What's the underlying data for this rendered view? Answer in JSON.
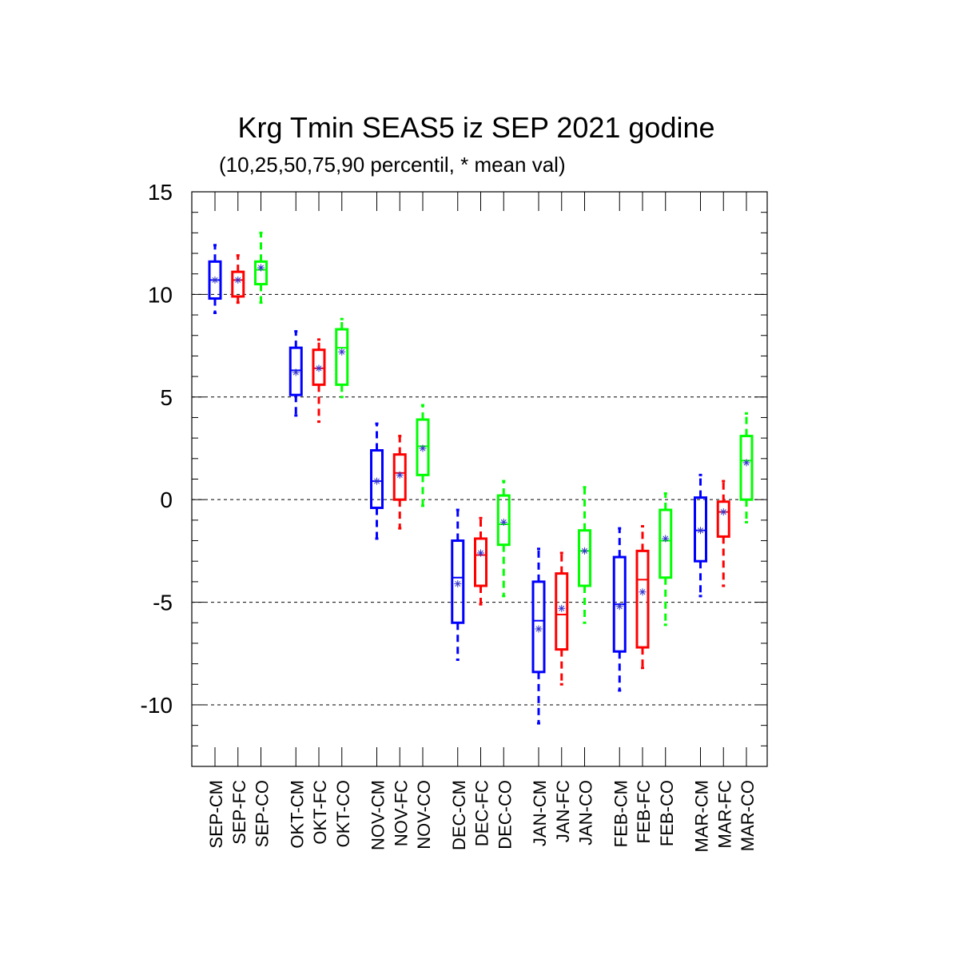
{
  "chart_data": {
    "type": "box",
    "title": "Krg Tmin SEAS5 iz SEP 2021 godine",
    "subtitle": "(10,25,50,75,90 percentil, * mean val)",
    "xlabel": "",
    "ylabel": "",
    "ylim": [
      -13,
      15
    ],
    "yticks": [
      15,
      10,
      5,
      0,
      -5,
      -10
    ],
    "ytick_labels": [
      "15",
      "10",
      "5",
      "0",
      "-5",
      "-10"
    ],
    "grid": "horizontal dashed at major ticks",
    "colors": {
      "CM": "#0000ff",
      "FC": "#ff0000",
      "CO": "#00ff00"
    },
    "categories": [
      "SEP-CM",
      "SEP-FC",
      "SEP-CO",
      "OKT-CM",
      "OKT-FC",
      "OKT-CO",
      "NOV-CM",
      "NOV-FC",
      "NOV-CO",
      "DEC-CM",
      "DEC-FC",
      "DEC-CO",
      "JAN-CM",
      "JAN-FC",
      "JAN-CO",
      "FEB-CM",
      "FEB-FC",
      "FEB-CO",
      "MAR-CM",
      "MAR-FC",
      "MAR-CO"
    ],
    "boxes": [
      {
        "p10": 9.1,
        "p25": 9.8,
        "p50": 10.7,
        "p75": 11.6,
        "p90": 12.4,
        "mean": 10.7
      },
      {
        "p10": 9.6,
        "p25": 9.9,
        "p50": 10.7,
        "p75": 11.1,
        "p90": 11.9,
        "mean": 10.7
      },
      {
        "p10": 9.6,
        "p25": 10.5,
        "p50": 11.2,
        "p75": 11.6,
        "p90": 13.0,
        "mean": 11.3
      },
      {
        "p10": 4.1,
        "p25": 5.1,
        "p50": 6.3,
        "p75": 7.4,
        "p90": 8.2,
        "mean": 6.2
      },
      {
        "p10": 3.8,
        "p25": 5.6,
        "p50": 6.4,
        "p75": 7.3,
        "p90": 7.8,
        "mean": 6.4
      },
      {
        "p10": 5.0,
        "p25": 5.6,
        "p50": 7.4,
        "p75": 8.3,
        "p90": 8.8,
        "mean": 7.2
      },
      {
        "p10": -1.9,
        "p25": -0.4,
        "p50": 0.9,
        "p75": 2.4,
        "p90": 3.7,
        "mean": 0.9
      },
      {
        "p10": -1.4,
        "p25": 0.0,
        "p50": 1.3,
        "p75": 2.2,
        "p90": 3.1,
        "mean": 1.2
      },
      {
        "p10": -0.3,
        "p25": 1.2,
        "p50": 2.6,
        "p75": 3.9,
        "p90": 4.6,
        "mean": 2.5
      },
      {
        "p10": -7.8,
        "p25": -6.0,
        "p50": -3.8,
        "p75": -2.0,
        "p90": -0.5,
        "mean": -4.1
      },
      {
        "p10": -5.1,
        "p25": -4.2,
        "p50": -2.7,
        "p75": -1.9,
        "p90": -0.9,
        "mean": -2.6
      },
      {
        "p10": -4.7,
        "p25": -2.2,
        "p50": -1.2,
        "p75": 0.2,
        "p90": 0.9,
        "mean": -1.1
      },
      {
        "p10": -10.9,
        "p25": -8.4,
        "p50": -5.9,
        "p75": -4.0,
        "p90": -2.4,
        "mean": -6.3
      },
      {
        "p10": -9.0,
        "p25": -7.3,
        "p50": -5.6,
        "p75": -3.6,
        "p90": -2.6,
        "mean": -5.3
      },
      {
        "p10": -6.0,
        "p25": -4.2,
        "p50": -2.5,
        "p75": -1.5,
        "p90": 0.6,
        "mean": -2.5
      },
      {
        "p10": -9.3,
        "p25": -7.4,
        "p50": -5.1,
        "p75": -2.8,
        "p90": -1.4,
        "mean": -5.2
      },
      {
        "p10": -8.2,
        "p25": -7.2,
        "p50": -3.9,
        "p75": -2.5,
        "p90": -1.3,
        "mean": -4.5
      },
      {
        "p10": -6.1,
        "p25": -3.8,
        "p50": -2.0,
        "p75": -0.5,
        "p90": 0.3,
        "mean": -1.9
      },
      {
        "p10": -4.7,
        "p25": -3.0,
        "p50": -1.5,
        "p75": 0.1,
        "p90": 1.2,
        "mean": -1.5
      },
      {
        "p10": -4.2,
        "p25": -1.8,
        "p50": -0.6,
        "p75": -0.1,
        "p90": 0.9,
        "mean": -0.6
      },
      {
        "p10": -1.1,
        "p25": 0.0,
        "p50": 1.9,
        "p75": 3.1,
        "p90": 4.2,
        "mean": 1.8
      }
    ]
  }
}
